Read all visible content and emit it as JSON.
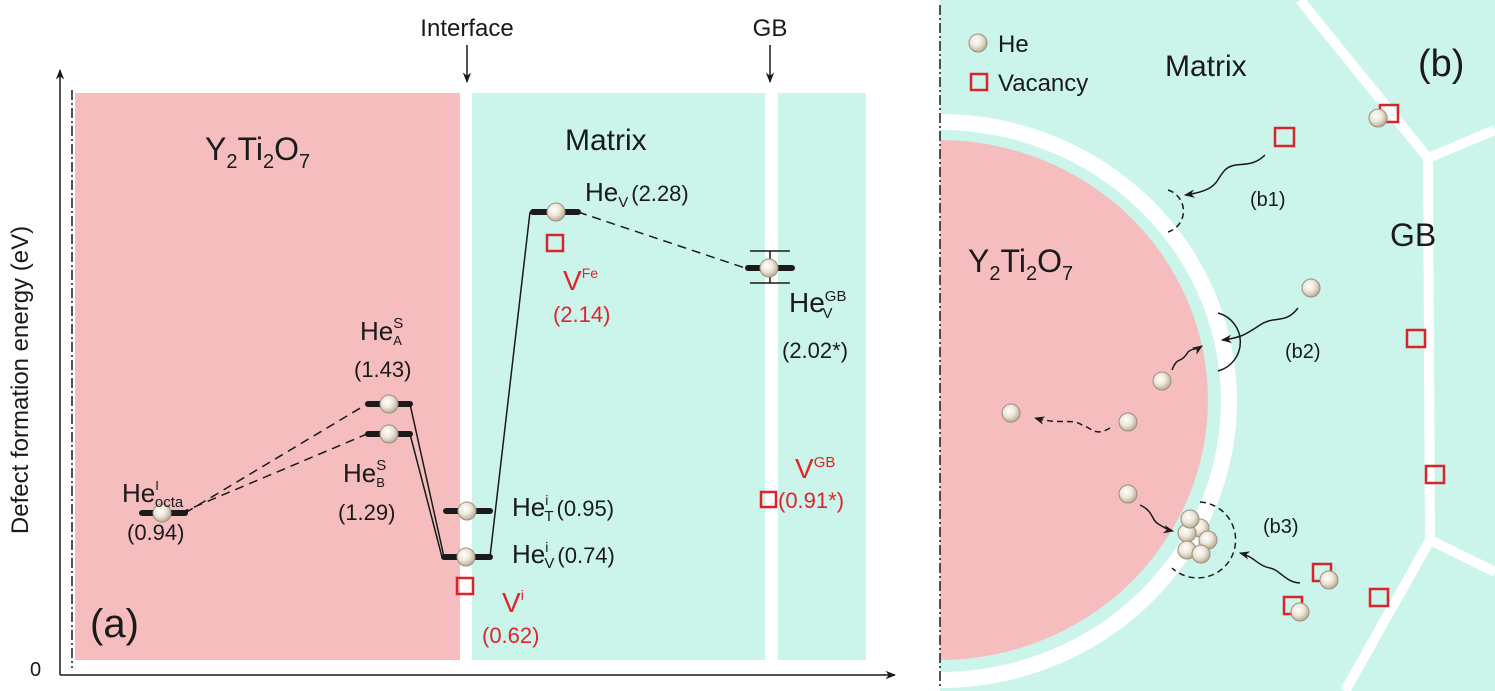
{
  "panel_a": {
    "panel_label": "(a)",
    "y_axis_label": "Defect formation energy (eV)",
    "y_axis_zero": "0",
    "markers": {
      "interface": "Interface",
      "gb": "GB"
    },
    "regions": {
      "oxide_base": "Y",
      "oxide_sub1": "2",
      "oxide_ti": "Ti",
      "oxide_sub2": "2",
      "oxide_o": "O",
      "oxide_sub3": "7",
      "matrix": "Matrix"
    },
    "levels": {
      "he_octa": {
        "base": "He",
        "sup": "I",
        "sub": "octa",
        "value": "(0.94)"
      },
      "he_s_a": {
        "base": "He",
        "sup": "S",
        "sub": "A",
        "value": "(1.43)"
      },
      "he_s_b": {
        "base": "He",
        "sup": "S",
        "sub": "B",
        "value": "(1.29)"
      },
      "he_i_t": {
        "base": "He",
        "sup": "i",
        "sub": "T",
        "value": "(0.95)"
      },
      "he_i_v": {
        "base": "He",
        "sup": "i",
        "sub": "V",
        "value": "(0.74)"
      },
      "he_v": {
        "base": "He",
        "sub": "V",
        "value": "(2.28)"
      },
      "he_v_gb": {
        "base": "He",
        "sup": "GB",
        "sub": "V",
        "value": "(2.02*)"
      }
    },
    "vacancies": {
      "v_i": {
        "base": "V",
        "sup": "i",
        "value": "(0.62)"
      },
      "v_fe": {
        "base": "V",
        "sup": "Fe",
        "value": "(2.14)"
      },
      "v_gb": {
        "base": "V",
        "sup": "GB",
        "value": "(0.91*)"
      }
    }
  },
  "panel_b": {
    "panel_label": "(b)",
    "legend": {
      "he": "He",
      "vacancy": "Vacancy"
    },
    "regions": {
      "matrix": "Matrix",
      "gb": "GB",
      "oxide_base": "Y",
      "oxide_sub1": "2",
      "oxide_ti": "Ti",
      "oxide_sub2": "2",
      "oxide_o": "O",
      "oxide_sub3": "7"
    },
    "processes": {
      "b1": "(b1)",
      "b2": "(b2)",
      "b3": "(b3)"
    }
  },
  "colors": {
    "oxide": "#f6bdbe",
    "matrix": "#cbf5ea",
    "vacancy": "#d9242b",
    "energy_text_red": "#e0242b"
  }
}
